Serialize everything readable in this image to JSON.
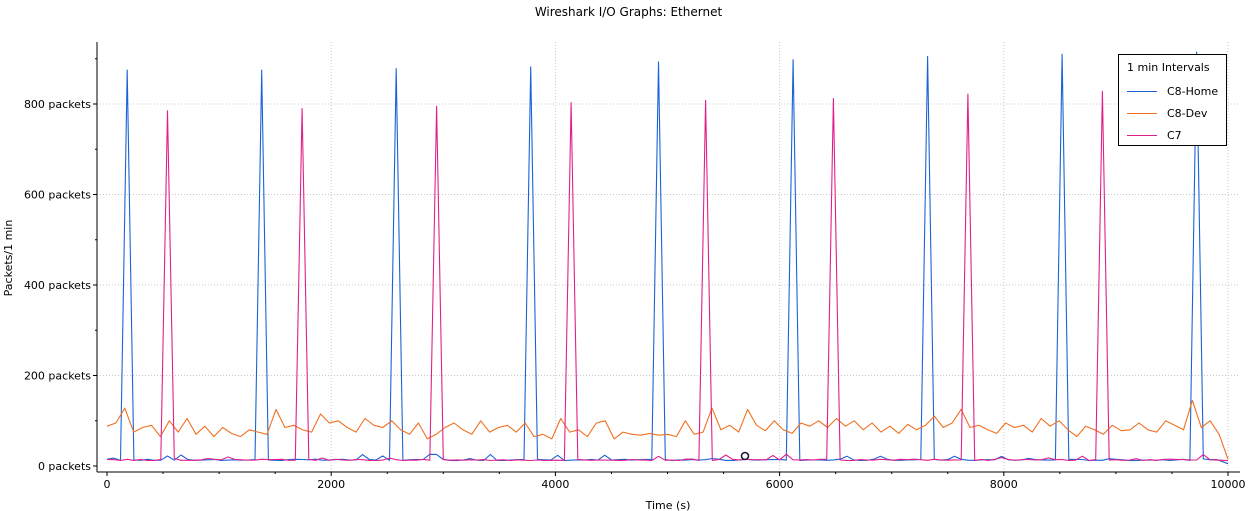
{
  "chart_data": {
    "type": "line",
    "title": "Wireshark I/O Graphs: Ethernet",
    "xlabel": "Time (s)",
    "ylabel": "Packets/1 min",
    "xlim": [
      0,
      10000
    ],
    "ylim": [
      -5,
      935
    ],
    "x_ticks": [
      0,
      2000,
      4000,
      6000,
      8000,
      10000
    ],
    "x_tick_labels": [
      "0",
      "2000",
      "4000",
      "6000",
      "8000",
      "10000"
    ],
    "y_ticks": [
      0,
      200,
      400,
      600,
      800
    ],
    "y_tick_labels": [
      "0 packets",
      "200 packets",
      "400 packets",
      "600 packets",
      "800 packets"
    ],
    "grid": true,
    "legend": {
      "title": "1 min Intervals",
      "placement": "top-right"
    },
    "series": [
      {
        "name": "C8-Home",
        "color": "#1a63d6",
        "baseline": 12,
        "peaks": [
          [
            180,
            875
          ],
          [
            1380,
            875
          ],
          [
            2580,
            878
          ],
          [
            3780,
            882
          ],
          [
            4920,
            893
          ],
          [
            6120,
            898
          ],
          [
            7320,
            905
          ],
          [
            8520,
            910
          ],
          [
            9720,
            915
          ]
        ],
        "end": [
          10000,
          5
        ]
      },
      {
        "name": "C8-Dev",
        "color": "#f07020",
        "values": [
          88,
          95,
          128,
          75,
          85,
          90,
          65,
          100,
          75,
          105,
          70,
          88,
          65,
          85,
          72,
          65,
          80,
          75,
          70,
          125,
          85,
          90,
          80,
          75,
          115,
          95,
          100,
          85,
          75,
          105,
          90,
          85,
          100,
          80,
          70,
          95,
          60,
          70,
          85,
          95,
          80,
          70,
          100,
          75,
          85,
          90,
          75,
          95,
          65,
          70,
          60,
          105,
          75,
          80,
          65,
          95,
          100,
          60,
          75,
          70,
          68,
          72,
          68,
          70,
          65,
          100,
          70,
          75,
          128,
          80,
          90,
          75,
          125,
          90,
          78,
          100,
          80,
          72,
          95,
          88,
          100,
          85,
          105,
          88,
          100,
          80,
          95,
          75,
          88,
          72,
          92,
          80,
          90,
          110,
          85,
          95,
          125,
          85,
          90,
          80,
          72,
          95,
          85,
          90,
          75,
          105,
          88,
          100,
          80,
          65,
          88,
          80,
          70,
          90,
          78,
          80,
          95,
          80,
          75,
          100,
          90,
          80,
          145,
          85,
          100,
          70,
          15
        ]
      },
      {
        "name": "C7",
        "color": "#e0208a",
        "baseline": 12,
        "peaks": [
          [
            540,
            785
          ],
          [
            1740,
            790
          ],
          [
            2940,
            795
          ],
          [
            4140,
            803
          ],
          [
            5340,
            808
          ],
          [
            6480,
            812
          ],
          [
            7680,
            822
          ],
          [
            8880,
            828
          ]
        ],
        "end": [
          10000,
          12
        ]
      }
    ]
  }
}
